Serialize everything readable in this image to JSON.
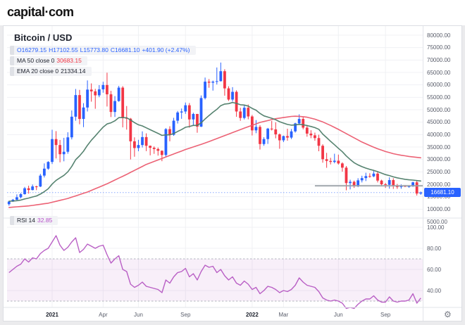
{
  "header": {
    "logo": "capital·com"
  },
  "icons": {
    "settings_gear": "⚙"
  },
  "colors": {
    "up": "#2962ff",
    "down": "#f23645",
    "ma50": "#eb5a6e",
    "ema20": "#4d7c68",
    "rsi_line": "#b95fc5",
    "accent": "#2962ff",
    "grid": "#f0f1f4",
    "separator": "#e2e4ea",
    "trendline": "#9aa0a6",
    "band_dash": "#b0b3bd"
  },
  "chart": {
    "title": "Bitcoin / USD",
    "legend": {
      "ohlc": {
        "o": "O16279.15",
        "h": "H17102.55",
        "l": "L15773.80",
        "c": "C16681.10",
        "change": "+401.90 (+2.47%)"
      },
      "ma": {
        "label": "MA 50 close 0",
        "value": "30683.15"
      },
      "ema": {
        "label": "EMA 20 close 0",
        "value": "21334.14"
      },
      "rsi": {
        "label": "RSI 14",
        "value": "32.85"
      }
    },
    "price_axis": {
      "labels": [
        "80000.00",
        "75000.00",
        "70000.00",
        "65000.00",
        "60000.00",
        "55000.00",
        "50000.00",
        "45000.00",
        "40000.00",
        "35000.00",
        "30000.00",
        "25000.00",
        "20000.00",
        "15000.00",
        "10000.00",
        "5000.00"
      ],
      "current_price": "16681.10"
    },
    "rsi_axis": {
      "labels": [
        "100.00",
        "80.00",
        "60.00",
        "40.00"
      ]
    }
  },
  "chart_data": {
    "type": "candlestick",
    "title": "Bitcoin / USD",
    "interval": "weekly",
    "x_range": [
      "Oct 2020",
      "Nov 2022"
    ],
    "price_axis": {
      "min": 5000,
      "max": 80000,
      "tick_step": 5000
    },
    "x_ticks": [
      {
        "label": "2021",
        "index": 11,
        "bold": true
      },
      {
        "label": "Apr",
        "index": 24,
        "bold": false
      },
      {
        "label": "Jun",
        "index": 33,
        "bold": false
      },
      {
        "label": "Sep",
        "index": 45,
        "bold": false
      },
      {
        "label": "2022",
        "index": 62,
        "bold": true
      },
      {
        "label": "Mar",
        "index": 70,
        "bold": false
      },
      {
        "label": "Jun",
        "index": 84,
        "bold": false
      },
      {
        "label": "Sep",
        "index": 96,
        "bold": false
      }
    ],
    "candles": [
      [
        12000,
        13250,
        11400,
        13050
      ],
      [
        13050,
        14100,
        12900,
        13800
      ],
      [
        13800,
        15950,
        13550,
        14800
      ],
      [
        14800,
        16480,
        14350,
        16050
      ],
      [
        16050,
        18950,
        15850,
        18400
      ],
      [
        18400,
        19450,
        16250,
        17700
      ],
      [
        17700,
        19900,
        17550,
        19150
      ],
      [
        19150,
        19450,
        17650,
        19100
      ],
      [
        19100,
        24200,
        18900,
        23500
      ],
      [
        23500,
        28400,
        22750,
        26300
      ],
      [
        26300,
        29300,
        25850,
        29000
      ],
      [
        29000,
        41950,
        28150,
        38200
      ],
      [
        38200,
        41400,
        30400,
        35800
      ],
      [
        35800,
        37850,
        28850,
        32100
      ],
      [
        32100,
        38700,
        29250,
        33100
      ],
      [
        33100,
        40950,
        32300,
        38900
      ],
      [
        38900,
        49700,
        38050,
        47200
      ],
      [
        47200,
        58350,
        45570,
        55900
      ],
      [
        55900,
        58000,
        44150,
        46300
      ],
      [
        46300,
        52650,
        43000,
        50900
      ],
      [
        50900,
        61800,
        49300,
        58100
      ],
      [
        58100,
        60600,
        53250,
        57400
      ],
      [
        57400,
        58400,
        50400,
        55800
      ],
      [
        55800,
        59900,
        55050,
        58200
      ],
      [
        58200,
        61250,
        56850,
        59950
      ],
      [
        59950,
        64900,
        51300,
        56200
      ],
      [
        56200,
        57600,
        47050,
        49100
      ],
      [
        49100,
        55500,
        47100,
        53500
      ],
      [
        53500,
        59600,
        53200,
        58900
      ],
      [
        58900,
        59500,
        42900,
        46700
      ],
      [
        46700,
        51500,
        42000,
        46400
      ],
      [
        46400,
        46700,
        30000,
        37300
      ],
      [
        37300,
        38900,
        31100,
        34600
      ],
      [
        34600,
        37900,
        33300,
        35800
      ],
      [
        35800,
        41300,
        34800,
        39000
      ],
      [
        39000,
        40500,
        33350,
        35500
      ],
      [
        35500,
        35600,
        31650,
        34700
      ],
      [
        34700,
        35250,
        32250,
        34200
      ],
      [
        34200,
        34800,
        31550,
        33500
      ],
      [
        33500,
        33650,
        29300,
        31800
      ],
      [
        31800,
        42600,
        31050,
        42200
      ],
      [
        42200,
        43350,
        37300,
        39900
      ],
      [
        39900,
        46750,
        39500,
        45600
      ],
      [
        45600,
        49500,
        44450,
        48900
      ],
      [
        48900,
        50500,
        46350,
        49300
      ],
      [
        49300,
        52900,
        48350,
        51800
      ],
      [
        51800,
        52700,
        42800,
        46100
      ],
      [
        46100,
        48800,
        43550,
        48300
      ],
      [
        48300,
        48350,
        40750,
        43200
      ],
      [
        43200,
        55750,
        43050,
        54700
      ],
      [
        54700,
        62950,
        54150,
        61300
      ],
      [
        61300,
        62350,
        58850,
        60900
      ],
      [
        60900,
        61750,
        57700,
        61300
      ],
      [
        61300,
        67000,
        60150,
        61500
      ],
      [
        61500,
        68990,
        61350,
        65500
      ],
      [
        65500,
        66300,
        55650,
        58600
      ],
      [
        58600,
        59450,
        53550,
        54100
      ],
      [
        54100,
        59100,
        53300,
        57200
      ],
      [
        57200,
        57800,
        47150,
        49300
      ],
      [
        49300,
        50800,
        45550,
        46700
      ],
      [
        46700,
        51950,
        46100,
        50800
      ],
      [
        50800,
        52100,
        46150,
        47300
      ],
      [
        47300,
        47900,
        39650,
        41700
      ],
      [
        41700,
        45850,
        40550,
        43100
      ],
      [
        43100,
        43800,
        34000,
        36200
      ],
      [
        36200,
        38950,
        35500,
        38200
      ],
      [
        38200,
        42700,
        36250,
        42400
      ],
      [
        42400,
        45500,
        41650,
        42100
      ],
      [
        42100,
        44950,
        38500,
        40100
      ],
      [
        40100,
        40450,
        34300,
        37700
      ],
      [
        37700,
        39600,
        37000,
        39400
      ],
      [
        39400,
        42350,
        37550,
        38800
      ],
      [
        38800,
        42250,
        38200,
        41300
      ],
      [
        41300,
        44750,
        40800,
        44500
      ],
      [
        44500,
        48150,
        44250,
        46300
      ],
      [
        46300,
        47250,
        42100,
        42800
      ],
      [
        42800,
        43900,
        39150,
        40400
      ],
      [
        40400,
        41750,
        38550,
        39700
      ],
      [
        39700,
        40800,
        37550,
        38600
      ],
      [
        38600,
        39950,
        33300,
        35500
      ],
      [
        35500,
        36100,
        28700,
        30100
      ],
      [
        30100,
        32650,
        26650,
        29400
      ],
      [
        29400,
        30650,
        28000,
        29000
      ],
      [
        29000,
        32300,
        28450,
        29500
      ],
      [
        29500,
        31950,
        27950,
        28400
      ],
      [
        28400,
        28850,
        25100,
        26700
      ],
      [
        26700,
        27350,
        17600,
        20500
      ],
      [
        20500,
        21850,
        17950,
        21000
      ],
      [
        21000,
        21500,
        18550,
        19300
      ],
      [
        19300,
        22450,
        18850,
        21600
      ],
      [
        21600,
        23450,
        20750,
        22500
      ],
      [
        22500,
        24650,
        21300,
        23300
      ],
      [
        23300,
        24450,
        22650,
        23200
      ],
      [
        23200,
        25350,
        22850,
        24300
      ],
      [
        24300,
        25200,
        20750,
        21500
      ],
      [
        21500,
        21850,
        19550,
        20000
      ],
      [
        20000,
        20550,
        18550,
        19800
      ],
      [
        19800,
        22800,
        18250,
        21700
      ],
      [
        21700,
        22450,
        18150,
        19400
      ],
      [
        19400,
        20150,
        18150,
        18900
      ],
      [
        18900,
        19950,
        18200,
        19300
      ],
      [
        19300,
        19700,
        18900,
        19100
      ],
      [
        19100,
        19600,
        18650,
        19200
      ],
      [
        19200,
        21050,
        18950,
        20800
      ],
      [
        20800,
        21480,
        15480,
        16279.15
      ],
      [
        16279.15,
        17102.55,
        15773.8,
        16681.1
      ]
    ],
    "overlays": [
      {
        "name": "MA 50",
        "color_key": "ma50",
        "last_value": 30683.15,
        "values": [
          10700,
          10820,
          10940,
          11060,
          11180,
          11300,
          11520,
          11740,
          11960,
          12180,
          12400,
          12780,
          13160,
          13540,
          13920,
          14300,
          14820,
          15340,
          15860,
          16380,
          16900,
          17560,
          18220,
          18880,
          19540,
          20200,
          20960,
          21720,
          22480,
          23240,
          24000,
          24800,
          25600,
          26400,
          27200,
          28000,
          28600,
          29200,
          29800,
          30400,
          31000,
          31600,
          32200,
          32800,
          33400,
          34000,
          34520,
          35040,
          35560,
          36080,
          36600,
          37200,
          37800,
          38400,
          39000,
          39600,
          40200,
          40800,
          41400,
          42000,
          42600,
          43175,
          43750,
          44325,
          44900,
          45275,
          45650,
          46025,
          46400,
          46625,
          46850,
          47075,
          47300,
          47400,
          47350,
          47200,
          47000,
          46600,
          46200,
          45650,
          45100,
          44400,
          43700,
          42900,
          42100,
          41250,
          40400,
          39550,
          38700,
          37850,
          37000,
          36300,
          35600,
          34950,
          34300,
          33750,
          33200,
          32750,
          32300,
          32000,
          31700,
          31450,
          31200,
          31000,
          30850,
          30683.15
        ]
      },
      {
        "name": "EMA 20",
        "color_key": "ema20",
        "last_value": 21334.14,
        "values": [
          13200,
          13257,
          13404,
          13656,
          14108,
          14450,
          14897,
          15297,
          16078,
          17051,
          18189,
          20094,
          21589,
          22590,
          23591,
          25048,
          27157,
          29893,
          31455,
          33306,
          35667,
          37736,
          39456,
          41241,
          43022,
          44277,
          44736,
          45570,
          46839,
          46826,
          46785,
          45882,
          44808,
          43950,
          43479,
          42719,
          41956,
          41218,
          40483,
          39656,
          39898,
          39898,
          40441,
          41246,
          42013,
          42945,
          43245,
          43726,
          43676,
          44725,
          46303,
          47693,
          48989,
          50180,
          51639,
          52302,
          52473,
          52923,
          52578,
          52018,
          51902,
          51464,
          50534,
          49826,
          48529,
          47546,
          47056,
          46584,
          45967,
          45180,
          44630,
          44075,
          43811,
          43877,
          44108,
          43983,
          43642,
          43267,
          42823,
          42126,
          40200,
          38800,
          37300,
          35900,
          34500,
          33100,
          31400,
          30000,
          28700,
          27800,
          27100,
          26500,
          26000,
          25600,
          25100,
          24500,
          23900,
          23500,
          23000,
          22600,
          22300,
          22000,
          21800,
          21700,
          21500,
          21334.14
        ]
      }
    ],
    "trendline": {
      "price": 19400,
      "start_index": 78
    },
    "current_price": 16681.1,
    "rsi_pane": {
      "type": "line",
      "name": "RSI 14",
      "period": 14,
      "last_value": 32.85,
      "upper_band": 70,
      "lower_band": 30,
      "axis_ticks": [
        100,
        80,
        60,
        40
      ],
      "values": [
        57,
        60,
        63,
        65,
        70,
        67,
        71,
        70,
        75,
        78,
        80,
        86,
        92,
        83,
        78,
        81,
        86,
        90,
        76,
        79,
        84,
        82,
        80,
        82,
        83,
        74,
        66,
        70,
        73,
        60,
        58,
        46,
        43,
        45,
        48,
        44,
        43,
        42,
        41,
        38,
        50,
        47,
        53,
        57,
        58,
        61,
        53,
        56,
        50,
        58,
        64,
        62,
        63,
        57,
        60,
        54,
        50,
        53,
        47,
        45,
        49,
        46,
        41,
        43,
        37,
        40,
        44,
        43,
        41,
        38,
        40,
        39,
        41,
        45,
        52,
        48,
        45,
        44,
        43,
        39,
        33,
        31,
        30,
        31,
        30,
        28,
        23,
        24,
        23,
        27,
        30,
        32,
        32,
        35,
        31,
        29,
        29,
        34,
        30,
        29,
        30,
        30,
        31,
        37,
        28,
        32.85
      ]
    }
  }
}
